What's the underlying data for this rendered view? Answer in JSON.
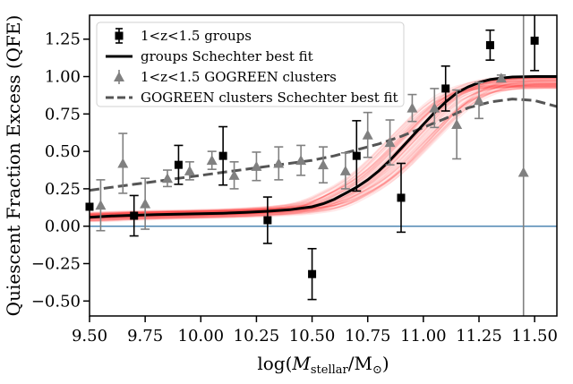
{
  "chart_data": {
    "type": "scatter",
    "xlabel": "log(M_stellar/M_⊙)",
    "xlabel_parts": {
      "pre": "log(",
      "mathM": "M",
      "sub": "stellar",
      "post": "/M",
      "sun_sub": "⊙",
      "close": ")"
    },
    "ylabel": "Quiescent Fraction Excess (QFE)",
    "xlim": [
      9.5,
      11.6
    ],
    "ylim": [
      -0.6,
      1.41
    ],
    "xticks": [
      9.5,
      9.75,
      10.0,
      10.25,
      10.5,
      10.75,
      11.0,
      11.25,
      11.5
    ],
    "xtick_labels": [
      "9.50",
      "9.75",
      "10.00",
      "10.25",
      "10.50",
      "10.75",
      "11.00",
      "11.25",
      "11.50"
    ],
    "yticks": [
      -0.5,
      -0.25,
      0.0,
      0.25,
      0.5,
      0.75,
      1.0,
      1.25
    ],
    "ytick_labels": [
      "−0.50",
      "−0.25",
      "0.00",
      "0.25",
      "0.50",
      "0.75",
      "1.00",
      "1.25"
    ],
    "zero_line": 0.0,
    "grid": false,
    "legend_position": "top-left",
    "colors": {
      "groups": "#000000",
      "gogreen": "#808080",
      "gogreen_fit": "#555555",
      "zero_line": "#4f87b3",
      "posterior": "#ff0000"
    },
    "series": [
      {
        "name": "1<z<1.5 groups",
        "kind": "points",
        "marker": "square",
        "points": [
          {
            "x": 9.5,
            "y": 0.13,
            "yerr": 0.0
          },
          {
            "x": 9.7,
            "y": 0.07,
            "yerr": 0.135
          },
          {
            "x": 9.9,
            "y": 0.41,
            "yerr": 0.13
          },
          {
            "x": 10.1,
            "y": 0.47,
            "yerr": 0.195
          },
          {
            "x": 10.3,
            "y": 0.04,
            "yerr": 0.155
          },
          {
            "x": 10.5,
            "y": -0.32,
            "yerr": 0.17
          },
          {
            "x": 10.7,
            "y": 0.47,
            "yerr": 0.235
          },
          {
            "x": 10.9,
            "y": 0.19,
            "yerr": 0.23
          },
          {
            "x": 11.1,
            "y": 0.92,
            "yerr": 0.15
          },
          {
            "x": 11.3,
            "y": 1.21,
            "yerr": 0.1
          },
          {
            "x": 11.5,
            "y": 1.24,
            "yerr": 0.2
          }
        ]
      },
      {
        "name": "groups Schechter best fit",
        "kind": "curve",
        "style": "solid",
        "x": [
          9.5,
          9.6,
          9.7,
          9.8,
          9.9,
          10.0,
          10.1,
          10.2,
          10.3,
          10.4,
          10.5,
          10.55,
          10.6,
          10.65,
          10.7,
          10.75,
          10.8,
          10.85,
          10.9,
          10.95,
          11.0,
          11.05,
          11.1,
          11.15,
          11.2,
          11.25,
          11.3,
          11.35,
          11.4,
          11.5,
          11.6
        ],
        "y": [
          0.06,
          0.068,
          0.073,
          0.077,
          0.08,
          0.083,
          0.087,
          0.092,
          0.1,
          0.11,
          0.13,
          0.15,
          0.18,
          0.22,
          0.26,
          0.31,
          0.37,
          0.44,
          0.52,
          0.6,
          0.68,
          0.76,
          0.83,
          0.89,
          0.93,
          0.96,
          0.98,
          0.99,
          0.997,
          1.0,
          1.0
        ]
      },
      {
        "name": "1<z<1.5 GOGREEN clusters",
        "kind": "points",
        "marker": "triangle",
        "points": [
          {
            "x": 9.55,
            "y": 0.14,
            "yerr": 0.17
          },
          {
            "x": 9.65,
            "y": 0.42,
            "yerr": 0.2
          },
          {
            "x": 9.75,
            "y": 0.15,
            "yerr": 0.17
          },
          {
            "x": 9.85,
            "y": 0.32,
            "yerr": 0.055
          },
          {
            "x": 9.95,
            "y": 0.37,
            "yerr": 0.06
          },
          {
            "x": 10.05,
            "y": 0.44,
            "yerr": 0.06
          },
          {
            "x": 10.15,
            "y": 0.34,
            "yerr": 0.09
          },
          {
            "x": 10.25,
            "y": 0.4,
            "yerr": 0.095
          },
          {
            "x": 10.35,
            "y": 0.42,
            "yerr": 0.11
          },
          {
            "x": 10.45,
            "y": 0.44,
            "yerr": 0.1
          },
          {
            "x": 10.55,
            "y": 0.41,
            "yerr": 0.12
          },
          {
            "x": 10.65,
            "y": 0.37,
            "yerr": 0.12
          },
          {
            "x": 10.75,
            "y": 0.61,
            "yerr": 0.15
          },
          {
            "x": 10.85,
            "y": 0.56,
            "yerr": 0.15
          },
          {
            "x": 10.95,
            "y": 0.79,
            "yerr": 0.09
          },
          {
            "x": 11.05,
            "y": 0.79,
            "yerr": 0.13
          },
          {
            "x": 11.15,
            "y": 0.68,
            "yerr": 0.23
          },
          {
            "x": 11.25,
            "y": 0.84,
            "yerr": 0.12
          },
          {
            "x": 11.35,
            "y": 0.99,
            "yerr": 0.02
          },
          {
            "x": 11.45,
            "y": 0.36,
            "yerr": 1.05
          }
        ]
      },
      {
        "name": "GOGREEN clusters Schechter best fit",
        "kind": "curve",
        "style": "dashed",
        "x": [
          9.5,
          9.6,
          9.7,
          9.8,
          9.9,
          10.0,
          10.1,
          10.2,
          10.3,
          10.4,
          10.5,
          10.6,
          10.7,
          10.8,
          10.9,
          11.0,
          11.1,
          11.2,
          11.3,
          11.4,
          11.5,
          11.6
        ],
        "y": [
          0.24,
          0.26,
          0.28,
          0.3,
          0.32,
          0.34,
          0.36,
          0.38,
          0.4,
          0.42,
          0.44,
          0.47,
          0.51,
          0.55,
          0.6,
          0.66,
          0.72,
          0.79,
          0.83,
          0.85,
          0.84,
          0.8
        ]
      }
    ]
  }
}
